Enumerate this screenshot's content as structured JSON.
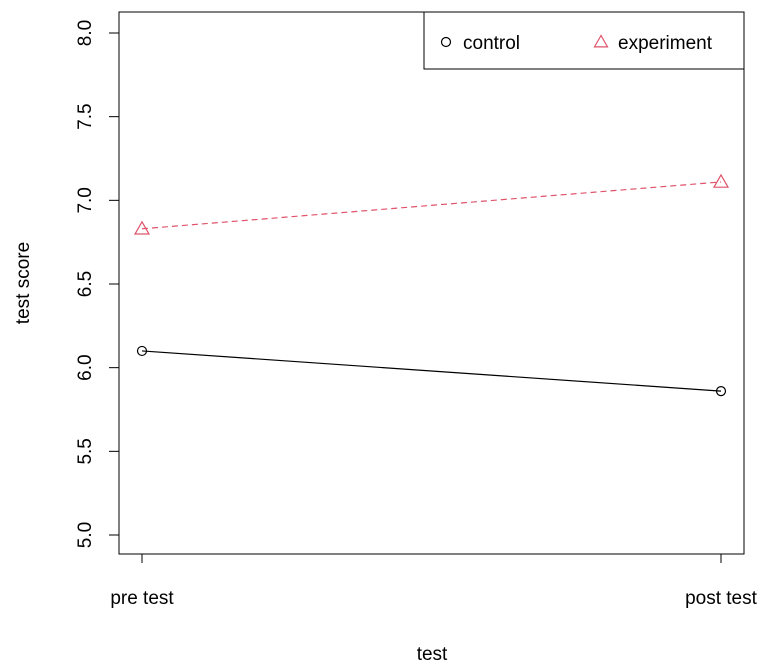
{
  "chart_data": {
    "type": "line",
    "title": "",
    "xlabel": "test",
    "ylabel": "test score",
    "categories": [
      "pre test",
      "post test"
    ],
    "ylim": [
      5.0,
      8.0
    ],
    "yticks": [
      "5.0",
      "5.5",
      "6.0",
      "6.5",
      "7.0",
      "7.5",
      "8.0"
    ],
    "grid": false,
    "legend_position": "top-right",
    "series": [
      {
        "name": "control",
        "values": [
          6.1,
          5.86
        ],
        "color": "#000000",
        "marker": "circle",
        "line_style": "solid"
      },
      {
        "name": "experiment",
        "values": [
          6.83,
          7.11
        ],
        "color": "#df536b",
        "marker": "triangle",
        "line_style": "dashed"
      }
    ]
  }
}
